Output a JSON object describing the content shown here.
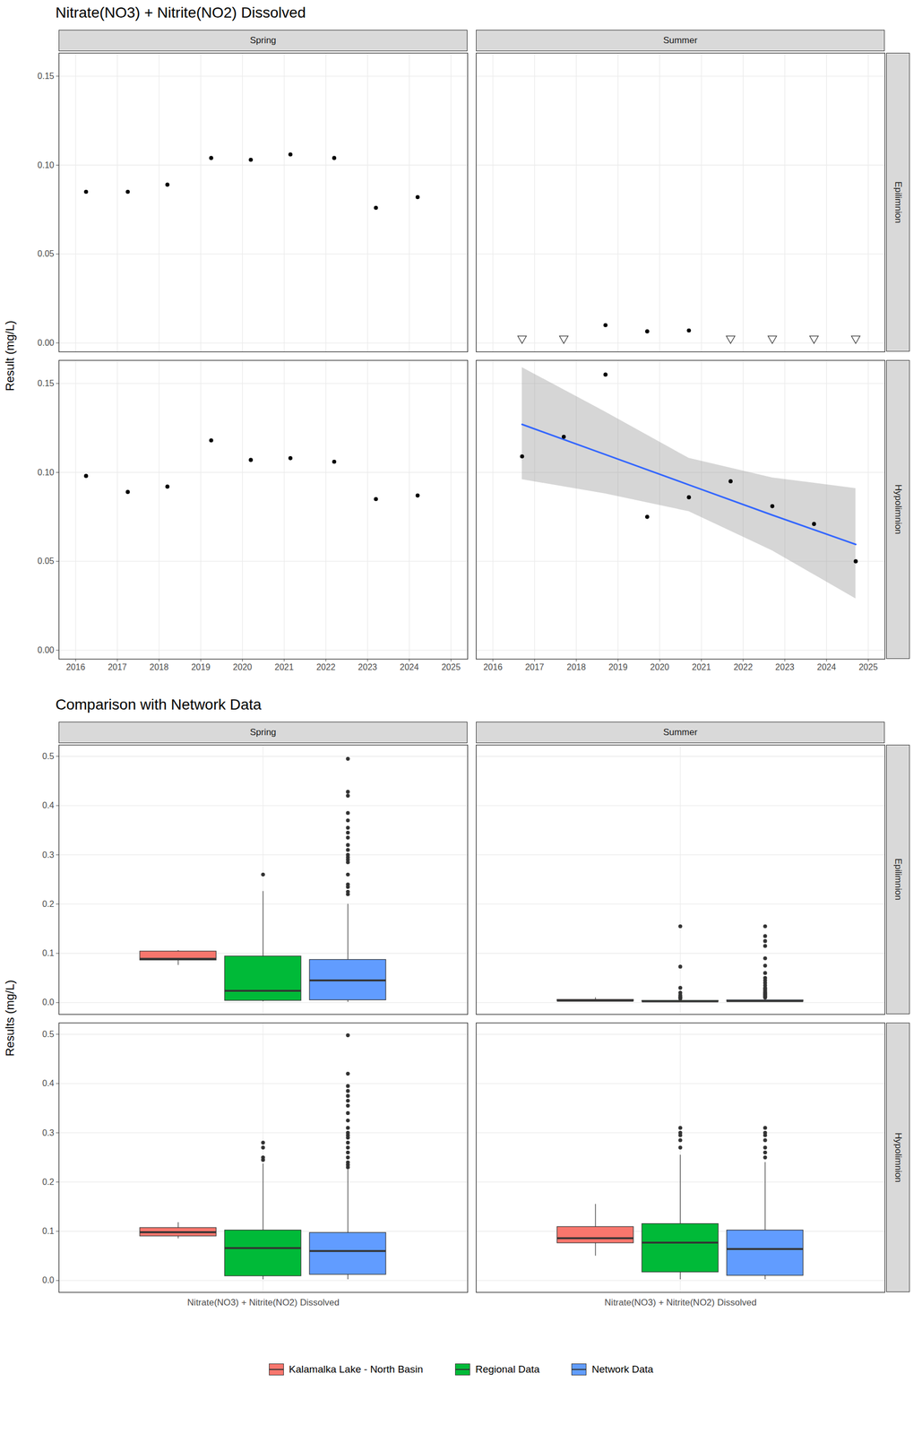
{
  "chart_data": [
    {
      "type": "scatter",
      "title": "Nitrate(NO3) + Nitrite(NO2) Dissolved",
      "y_label": "Result (mg/L)",
      "columns": [
        "Spring",
        "Summer"
      ],
      "rows": [
        "Epilimnion",
        "Hypolimnion"
      ],
      "xlim": [
        2015.6,
        2025.4
      ],
      "xticks": [
        2016,
        2017,
        2018,
        2019,
        2020,
        2021,
        2022,
        2023,
        2024,
        2025
      ],
      "ylim": [
        -0.005,
        0.163
      ],
      "yticks": [
        {
          "value": 0,
          "label": "0.00"
        },
        {
          "value": 0.05,
          "label": "0.05"
        },
        {
          "value": 0.1,
          "label": "0.10"
        },
        {
          "value": 0.15,
          "label": "0.15"
        }
      ],
      "grid": true,
      "panels": [
        {
          "column": "Spring",
          "row": "Epilimnion",
          "series": [
            {
              "marker": "circle",
              "x": [
                2016.25,
                2017.25,
                2018.2,
                2019.25,
                2020.2,
                2021.15,
                2022.2,
                2023.2,
                2024.2
              ],
              "values": [
                0.085,
                0.085,
                0.089,
                0.104,
                0.103,
                0.106,
                0.104,
                0.076,
                0.082
              ]
            }
          ]
        },
        {
          "column": "Summer",
          "row": "Epilimnion",
          "series": [
            {
              "marker": "circle",
              "x": [
                2018.7,
                2019.7,
                2020.7
              ],
              "values": [
                0.01,
                0.0065,
                0.007
              ]
            },
            {
              "marker": "triangle-down",
              "x": [
                2016.7,
                2017.7,
                2021.7,
                2022.7,
                2023.7,
                2024.7
              ],
              "values": [
                0.0025,
                0.0025,
                0.0025,
                0.0025,
                0.0025,
                0.0025
              ]
            }
          ]
        },
        {
          "column": "Spring",
          "row": "Hypolimnion",
          "series": [
            {
              "marker": "circle",
              "x": [
                2016.25,
                2017.25,
                2018.2,
                2019.25,
                2020.2,
                2021.15,
                2022.2,
                2023.2,
                2024.2
              ],
              "values": [
                0.098,
                0.089,
                0.092,
                0.118,
                0.107,
                0.108,
                0.106,
                0.085,
                0.087
              ]
            }
          ]
        },
        {
          "column": "Summer",
          "row": "Hypolimnion",
          "series": [
            {
              "marker": "circle",
              "x": [
                2016.7,
                2017.7,
                2018.7,
                2019.7,
                2020.7,
                2021.7,
                2022.7,
                2023.7,
                2024.7
              ],
              "values": [
                0.109,
                0.12,
                0.155,
                0.075,
                0.086,
                0.095,
                0.081,
                0.071,
                0.05
              ]
            }
          ],
          "trend": {
            "color": "#3366FF",
            "x": [
              2016.7,
              2018.7,
              2020.7,
              2022.7,
              2024.7
            ],
            "values": [
              0.127,
              0.11,
              0.093,
              0.076,
              0.0595
            ],
            "lower": [
              0.096,
              0.088,
              0.078,
              0.056,
              0.029
            ],
            "upper": [
              0.159,
              0.134,
              0.108,
              0.097,
              0.091
            ]
          }
        }
      ]
    },
    {
      "type": "box",
      "title": "Comparison with Network Data",
      "y_label": "Results (mg/L)",
      "categories": [
        "Nitrate(NO3) + Nitrite(NO2) Dissolved"
      ],
      "columns": [
        "Spring",
        "Summer"
      ],
      "rows": [
        "Epilimnion",
        "Hypolimnion"
      ],
      "ylim": [
        -0.024,
        0.523
      ],
      "yticks": [
        {
          "value": 0,
          "label": "0.0"
        },
        {
          "value": 0.1,
          "label": "0.1"
        },
        {
          "value": 0.2,
          "label": "0.2"
        },
        {
          "value": 0.3,
          "label": "0.3"
        },
        {
          "value": 0.4,
          "label": "0.4"
        },
        {
          "value": 0.5,
          "label": "0.5"
        }
      ],
      "grid": true,
      "legend": "bottom",
      "series": [
        {
          "name": "Kalamalka Lake - North Basin",
          "color": "#F8766D"
        },
        {
          "name": "Regional Data",
          "color": "#00BA38"
        },
        {
          "name": "Network Data",
          "color": "#619CFF"
        }
      ],
      "panels": [
        {
          "column": "Spring",
          "row": "Epilimnion",
          "boxes": [
            {
              "series": "Kalamalka Lake - North Basin",
              "whisker_low": 0.076,
              "q1": 0.086,
              "median": 0.089,
              "q3": 0.104,
              "whisker_high": 0.106,
              "outliers": []
            },
            {
              "series": "Regional Data",
              "whisker_low": 0.002,
              "q1": 0.004,
              "median": 0.024,
              "q3": 0.094,
              "whisker_high": 0.226,
              "outliers": [
                0.26
              ]
            },
            {
              "series": "Network Data",
              "whisker_low": 0.001,
              "q1": 0.005,
              "median": 0.045,
              "q3": 0.087,
              "whisker_high": 0.2,
              "outliers": [
                0.22,
                0.225,
                0.235,
                0.24,
                0.26,
                0.285,
                0.29,
                0.295,
                0.3,
                0.31,
                0.32,
                0.335,
                0.345,
                0.355,
                0.37,
                0.385,
                0.42,
                0.428,
                0.495
              ]
            }
          ]
        },
        {
          "column": "Summer",
          "row": "Epilimnion",
          "boxes": [
            {
              "series": "Kalamalka Lake - North Basin",
              "whisker_low": 0.0025,
              "q1": 0.003,
              "median": 0.004,
              "q3": 0.006,
              "whisker_high": 0.01,
              "outliers": []
            },
            {
              "series": "Regional Data",
              "whisker_low": 0.002,
              "q1": 0.002,
              "median": 0.0025,
              "q3": 0.004,
              "whisker_high": 0.006,
              "outliers": [
                0.008,
                0.01,
                0.012,
                0.015,
                0.02,
                0.03,
                0.073,
                0.155
              ]
            },
            {
              "series": "Network Data",
              "whisker_low": 0.002,
              "q1": 0.002,
              "median": 0.003,
              "q3": 0.005,
              "whisker_high": 0.009,
              "outliers": [
                0.01,
                0.012,
                0.014,
                0.016,
                0.018,
                0.02,
                0.022,
                0.025,
                0.028,
                0.03,
                0.035,
                0.04,
                0.045,
                0.05,
                0.06,
                0.075,
                0.09,
                0.115,
                0.125,
                0.135,
                0.155
              ]
            }
          ]
        },
        {
          "column": "Spring",
          "row": "Hypolimnion",
          "boxes": [
            {
              "series": "Kalamalka Lake - North Basin",
              "whisker_low": 0.085,
              "q1": 0.09,
              "median": 0.098,
              "q3": 0.107,
              "whisker_high": 0.118,
              "outliers": []
            },
            {
              "series": "Regional Data",
              "whisker_low": 0.002,
              "q1": 0.009,
              "median": 0.066,
              "q3": 0.102,
              "whisker_high": 0.237,
              "outliers": [
                0.245,
                0.25,
                0.27,
                0.28
              ]
            },
            {
              "series": "Network Data",
              "whisker_low": 0.002,
              "q1": 0.012,
              "median": 0.06,
              "q3": 0.097,
              "whisker_high": 0.225,
              "outliers": [
                0.23,
                0.235,
                0.24,
                0.25,
                0.26,
                0.27,
                0.28,
                0.29,
                0.295,
                0.3,
                0.31,
                0.325,
                0.34,
                0.355,
                0.365,
                0.375,
                0.385,
                0.395,
                0.42,
                0.498
              ]
            }
          ]
        },
        {
          "column": "Summer",
          "row": "Hypolimnion",
          "boxes": [
            {
              "series": "Kalamalka Lake - North Basin",
              "whisker_low": 0.05,
              "q1": 0.076,
              "median": 0.086,
              "q3": 0.109,
              "whisker_high": 0.155,
              "outliers": []
            },
            {
              "series": "Regional Data",
              "whisker_low": 0.002,
              "q1": 0.017,
              "median": 0.077,
              "q3": 0.115,
              "whisker_high": 0.255,
              "outliers": [
                0.27,
                0.285,
                0.295,
                0.3,
                0.31
              ]
            },
            {
              "series": "Network Data",
              "whisker_low": 0.002,
              "q1": 0.01,
              "median": 0.064,
              "q3": 0.102,
              "whisker_high": 0.24,
              "outliers": [
                0.25,
                0.26,
                0.27,
                0.285,
                0.295,
                0.3,
                0.31
              ]
            }
          ]
        }
      ]
    }
  ]
}
